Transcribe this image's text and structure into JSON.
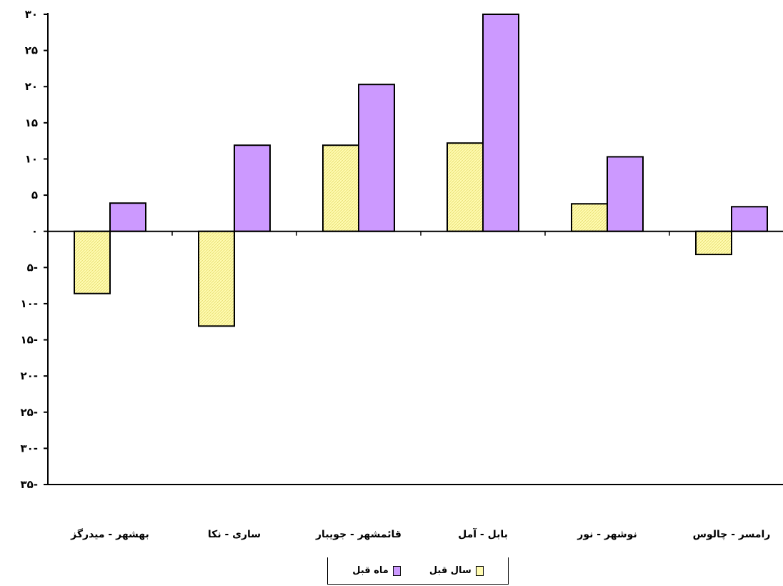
{
  "chart_data": {
    "type": "bar",
    "categories": [
      "بهشهر - میدرگز",
      "ساری - نکا",
      "قائمشهر - جویبار",
      "بابل - آمل",
      "نوشهر - نور",
      "رامسر - چالوس"
    ],
    "series": [
      {
        "name": "سال قبل",
        "values": [
          -8.6,
          -13.1,
          11.9,
          12.2,
          3.8,
          -3.2
        ],
        "color": "#fffbb0"
      },
      {
        "name": "ماه قبل",
        "values": [
          3.9,
          11.9,
          20.3,
          30.0,
          10.3,
          3.4
        ],
        "color": "#cc99ff"
      }
    ],
    "yticks": [
      {
        "value": 30,
        "label": "۳۰"
      },
      {
        "value": 25,
        "label": "۲۵"
      },
      {
        "value": 20,
        "label": "۲۰"
      },
      {
        "value": 15,
        "label": "۱۵"
      },
      {
        "value": 10,
        "label": "۱۰"
      },
      {
        "value": 5,
        "label": "۵"
      },
      {
        "value": 0,
        "label": "۰"
      },
      {
        "value": -5,
        "label": "۵-"
      },
      {
        "value": -10,
        "label": "۱۰-"
      },
      {
        "value": -15,
        "label": "۱۵-"
      },
      {
        "value": -20,
        "label": "۲۰-"
      },
      {
        "value": -25,
        "label": "۲۵-"
      },
      {
        "value": -30,
        "label": "۳۰-"
      },
      {
        "value": -35,
        "label": "۳۵-"
      }
    ],
    "ylim": [
      -35,
      30
    ],
    "grid": false,
    "legend_position": "bottom",
    "title": "",
    "xlabel": "",
    "ylabel": ""
  }
}
